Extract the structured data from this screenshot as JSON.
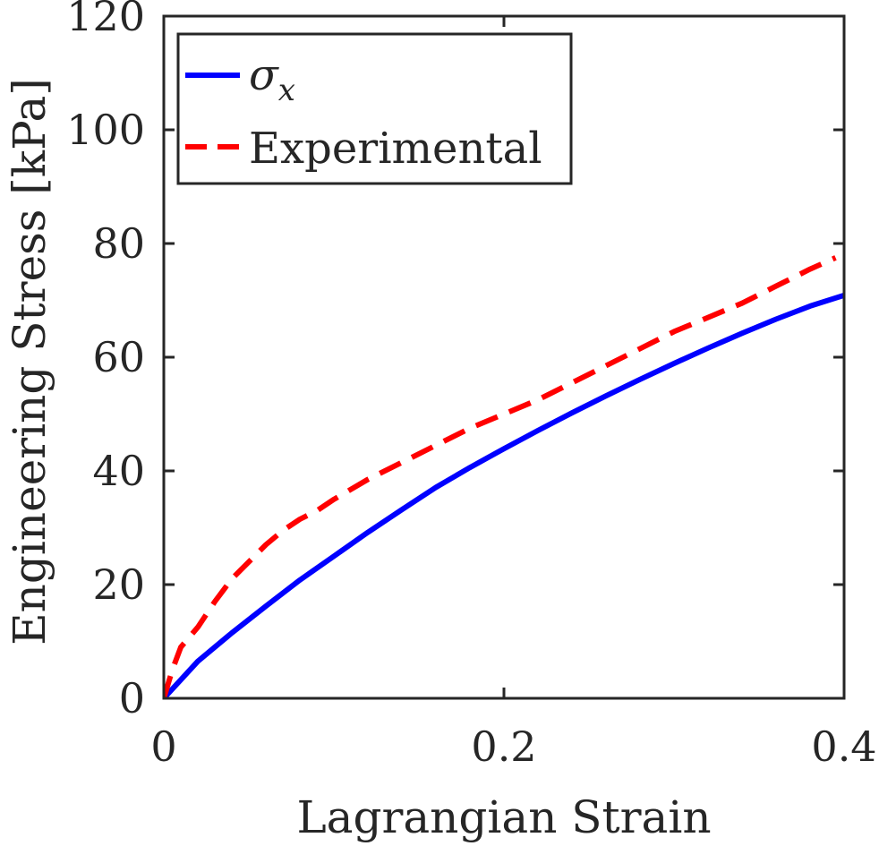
{
  "chart_data": {
    "type": "line",
    "title": "",
    "xlabel": "Lagrangian Strain",
    "ylabel": "Engineering Stress [kPa]",
    "xlim": [
      0,
      0.4
    ],
    "ylim": [
      0,
      120
    ],
    "xticks": [
      0,
      0.2,
      0.4
    ],
    "xtick_labels": [
      "0",
      "0.2",
      "0.4"
    ],
    "yticks": [
      0,
      20,
      40,
      60,
      80,
      100,
      120
    ],
    "ytick_labels": [
      "0",
      "20",
      "40",
      "60",
      "80",
      "100",
      "120"
    ],
    "grid": false,
    "legend_position": "top-left",
    "series": [
      {
        "name": "σx",
        "legend_symbol": "σ",
        "legend_subscript": "x",
        "color": "#0000ff",
        "style": "solid",
        "x": [
          0,
          0.02,
          0.04,
          0.06,
          0.08,
          0.1,
          0.12,
          0.14,
          0.16,
          0.18,
          0.2,
          0.22,
          0.24,
          0.26,
          0.28,
          0.3,
          0.32,
          0.34,
          0.36,
          0.38,
          0.4
        ],
        "y": [
          0,
          6.5,
          11.5,
          16.2,
          20.8,
          25.0,
          29.2,
          33.2,
          37.1,
          40.6,
          43.9,
          47.1,
          50.2,
          53.2,
          56.1,
          58.9,
          61.6,
          64.2,
          66.7,
          69.0,
          70.9
        ]
      },
      {
        "name": "Experimental",
        "color": "#ff0000",
        "style": "dashed",
        "x": [
          0,
          0.005,
          0.01,
          0.02,
          0.03,
          0.04,
          0.05,
          0.06,
          0.07,
          0.08,
          0.09,
          0.1,
          0.12,
          0.14,
          0.16,
          0.18,
          0.2,
          0.22,
          0.24,
          0.26,
          0.28,
          0.3,
          0.32,
          0.34,
          0.36,
          0.38,
          0.395
        ],
        "y": [
          0,
          5.0,
          9.0,
          12.5,
          17.0,
          21.0,
          24.0,
          27.0,
          29.5,
          31.5,
          33.0,
          35.0,
          38.5,
          41.5,
          44.5,
          47.5,
          50.0,
          52.5,
          55.5,
          58.5,
          61.5,
          64.5,
          67.0,
          69.5,
          72.5,
          75.5,
          77.5
        ]
      }
    ]
  }
}
